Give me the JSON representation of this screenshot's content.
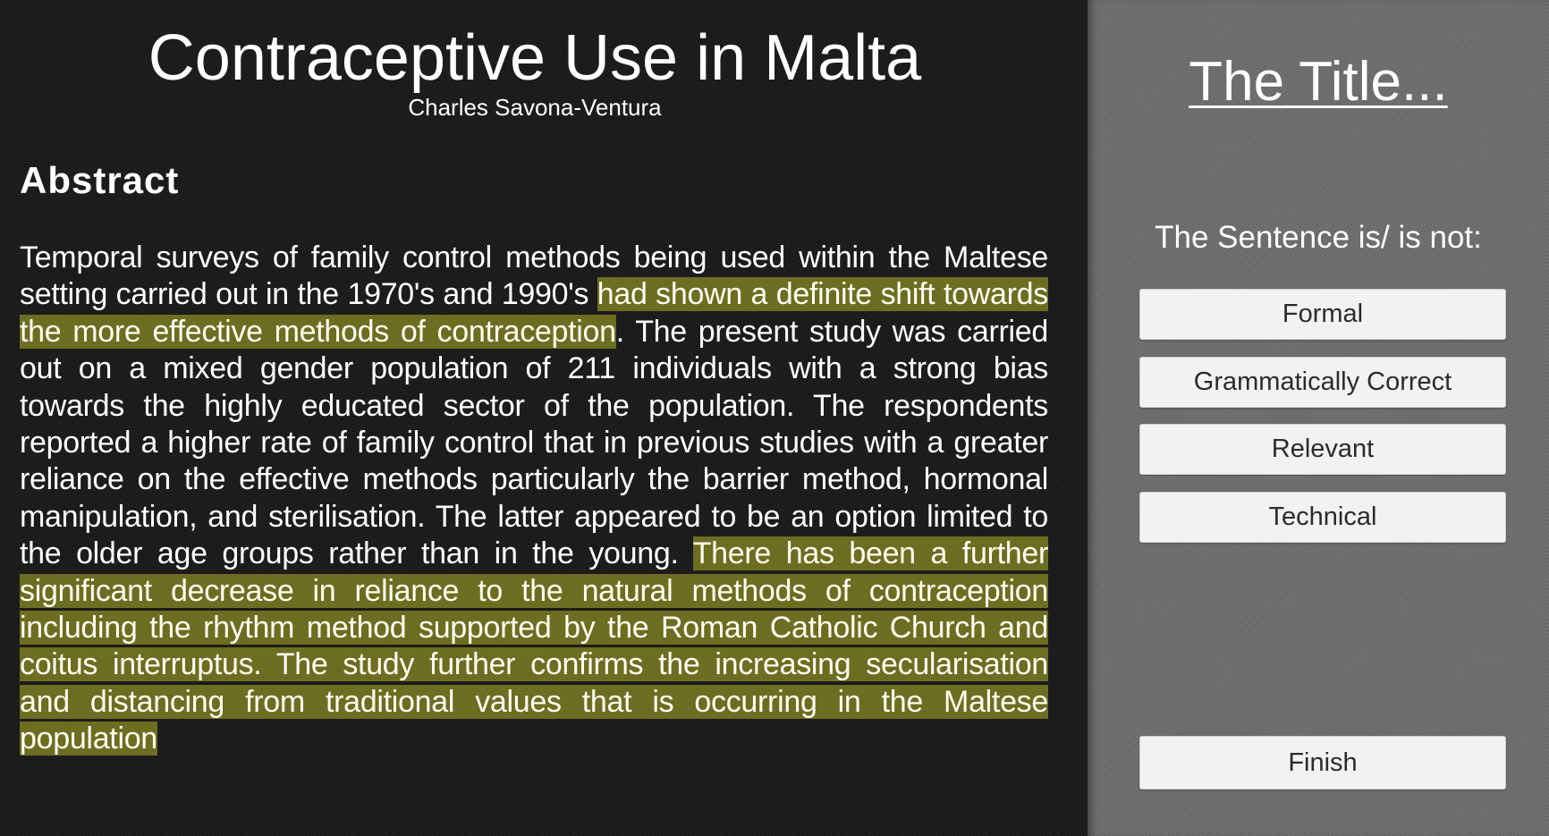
{
  "paper": {
    "title": "Contraceptive Use in Malta",
    "author": "Charles Savona-Ventura",
    "abstract_heading": "Abstract",
    "abstract_segments": [
      {
        "text": "Temporal surveys of family control methods being used within the Maltese setting carried out in the 1970's and 1990's ",
        "highlighted": false
      },
      {
        "text": "had shown a definite shift towards the more effective methods of contraception",
        "highlighted": true
      },
      {
        "text": ". The present study was carried out on a mixed gender population of 211 individuals with a strong bias towards the highly educated sector of the population. The respondents reported a higher rate of family control that in previous studies with a greater reliance on the effective methods particularly the barrier method, hormonal manipulation, and sterilisation. The latter appeared to be an option limited to the older age groups rather than in the young. ",
        "highlighted": false
      },
      {
        "text": "There has been a further significant decrease in reliance to the natural methods of contraception including the rhythm method supported by the Roman Catholic Church and coitus interruptus. The study further confirms the increasing secularisation and distancing from traditional values that is occurring in the Maltese population",
        "highlighted": true
      }
    ]
  },
  "panel": {
    "title": "The Title...",
    "sentence_label": "The Sentence is/ is not:",
    "options": {
      "formal": "Formal",
      "grammatical": "Grammatically Correct",
      "relevant": "Relevant",
      "technical": "Technical"
    },
    "finish_label": "Finish"
  },
  "colors": {
    "highlight": "#b0b028",
    "left_background": "#1c1c1c",
    "right_background": "#6f6f6f",
    "button_background": "#f2f2f2"
  }
}
